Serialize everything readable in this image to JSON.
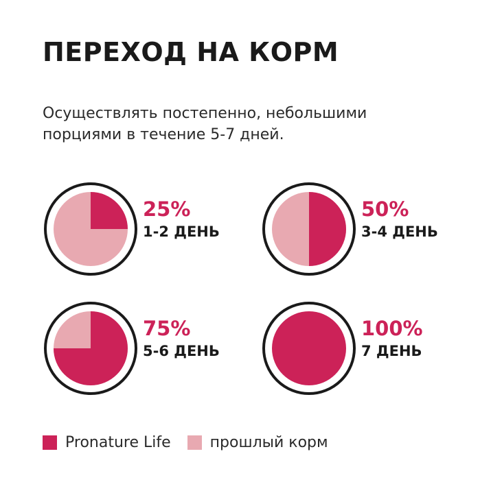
{
  "title": "ПЕРЕХОД НА КОРМ",
  "subtitle_lines": [
    "Осуществлять постепенно, небольшими",
    "порциями в течение 5-7 дней."
  ],
  "colors": {
    "new_food": "#cc2258",
    "old_food": "#e8a9b1",
    "ring": "#1a1a1a"
  },
  "chart_data": {
    "type": "pie",
    "charts": [
      {
        "new_pct": 25,
        "pct_label": "25%",
        "day_label": "1-2 ДЕНЬ"
      },
      {
        "new_pct": 50,
        "pct_label": "50%",
        "day_label": "3-4 ДЕНЬ"
      },
      {
        "new_pct": 75,
        "pct_label": "75%",
        "day_label": "5-6 ДЕНЬ"
      },
      {
        "new_pct": 100,
        "pct_label": "100%",
        "day_label": "7 ДЕНЬ"
      }
    ],
    "legend": [
      {
        "label": "Pronature Life",
        "color": "#cc2258"
      },
      {
        "label": "прошлый корм",
        "color": "#e8a9b1"
      }
    ]
  }
}
